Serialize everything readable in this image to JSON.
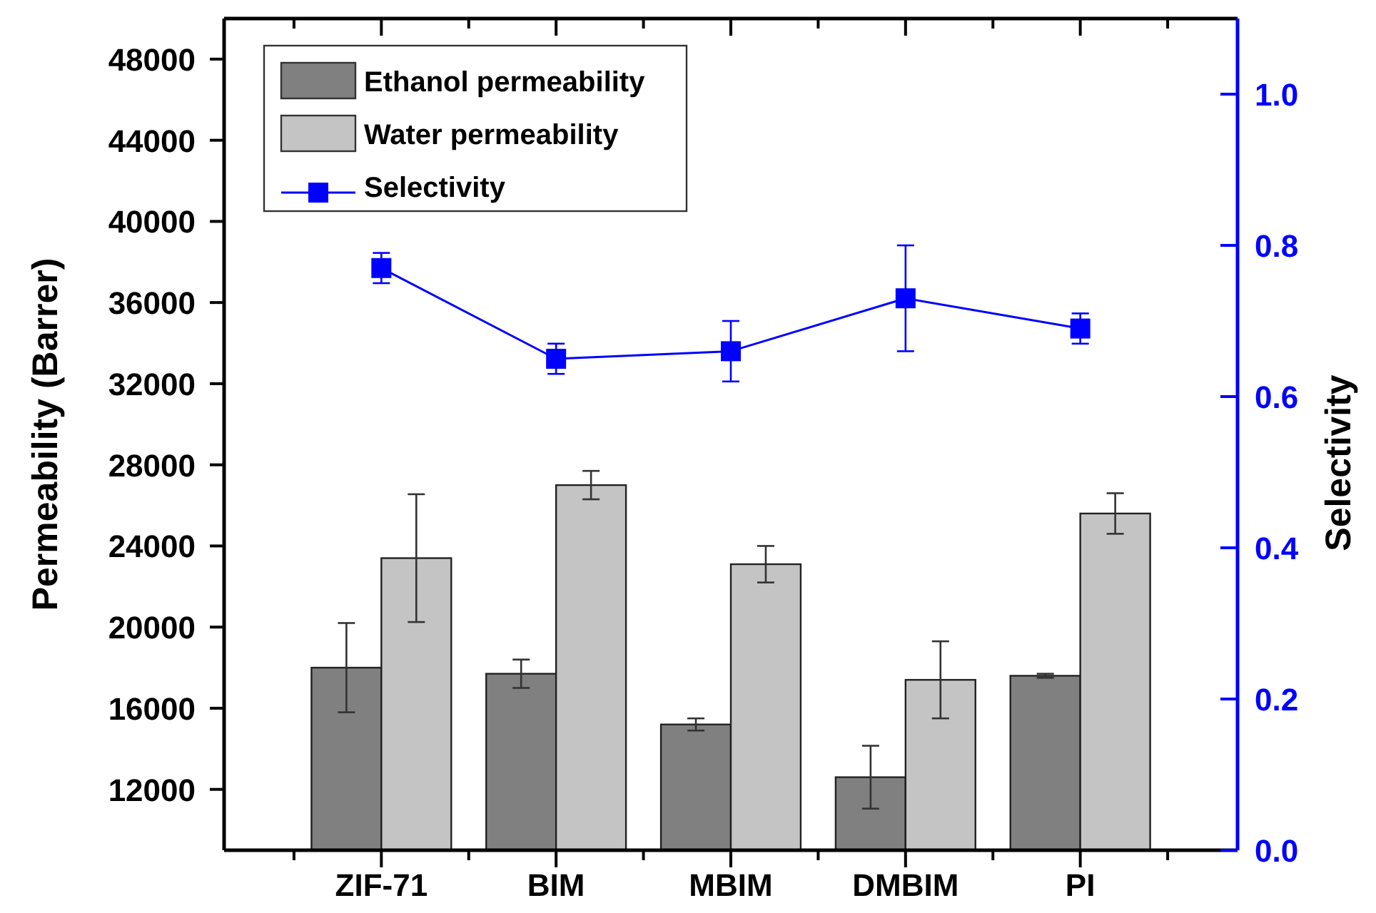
{
  "chart_data": {
    "type": "bar",
    "ylabel": "Permeability (Barrer)",
    "y2label": "Selectivity",
    "categories": [
      "ZIF-71",
      "BIM",
      "MBIM",
      "DMBIM",
      "PI"
    ],
    "series": [
      {
        "name": "Ethanol permeability",
        "color": "#808080",
        "values": [
          18000,
          17700,
          15200,
          12600,
          17600
        ],
        "errors": [
          2200,
          700,
          300,
          1550,
          100
        ]
      },
      {
        "name": "Water permeability",
        "color": "#c4c4c4",
        "values": [
          23400,
          27000,
          23100,
          17400,
          25600
        ],
        "errors": [
          3150,
          700,
          900,
          1900,
          1000
        ]
      },
      {
        "name": "Selectivity",
        "type": "line",
        "axis": "y2",
        "color": "#0000ff",
        "marker": "square",
        "values": [
          0.77,
          0.65,
          0.66,
          0.73,
          0.69
        ],
        "errors": [
          0.02,
          0.02,
          0.04,
          0.07,
          0.02
        ]
      }
    ],
    "ylim": [
      9000,
      50000
    ],
    "yticks": [
      12000,
      16000,
      20000,
      24000,
      28000,
      32000,
      36000,
      40000,
      44000,
      48000
    ],
    "y2lim": [
      0,
      1.1
    ],
    "y2ticks": [
      {
        "value": 0,
        "label": "0.0"
      },
      0.2,
      0.4,
      0.6,
      0.8,
      {
        "value": 1,
        "label": "1.0"
      }
    ],
    "legend": "top left",
    "grid": false
  }
}
